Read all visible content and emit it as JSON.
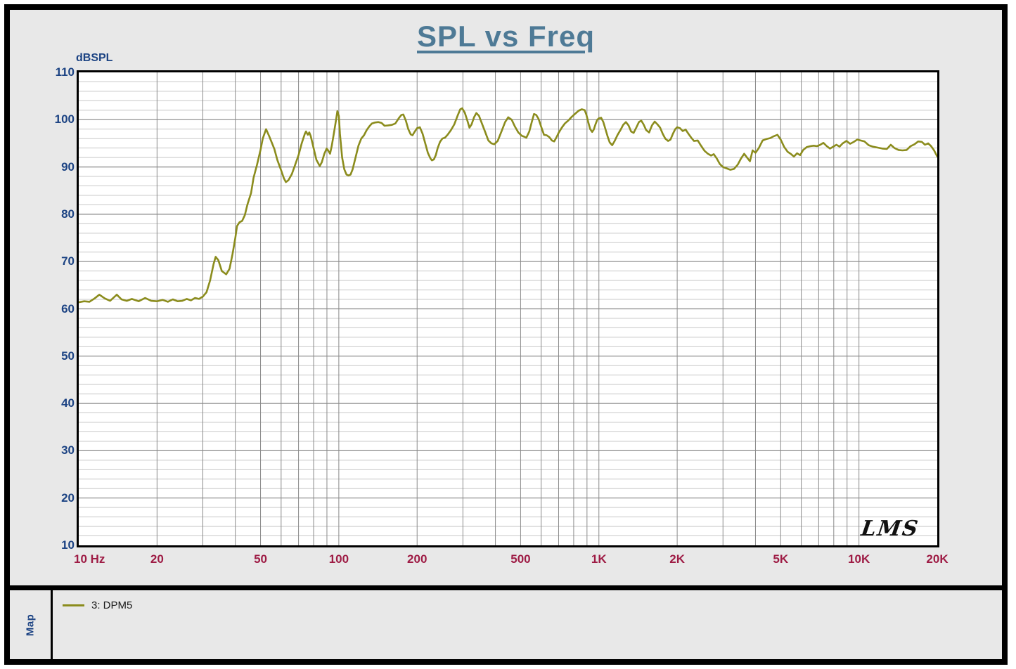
{
  "title": "SPL vs Freq",
  "signature": "LMS",
  "colors": {
    "title": "#4e7a96",
    "y_axis_labels": "#1c4383",
    "x_axis_labels": "#9e1c45",
    "curve": "#8b8c1d",
    "grid_major": "#8a8a8a",
    "grid_minor": "#c9c9c9",
    "panel_background": "#e8e8e8",
    "plot_background": "#ffffff",
    "frame": "#000000"
  },
  "y_axis": {
    "unit_label": "dBSPL",
    "ticks": [
      110,
      100,
      90,
      80,
      70,
      60,
      50,
      40,
      30,
      20,
      10
    ]
  },
  "x_axis": {
    "ticks": [
      {
        "freq": 10,
        "label": "10 Hz",
        "align": "left"
      },
      {
        "freq": 20,
        "label": "20",
        "align": "center"
      },
      {
        "freq": 50,
        "label": "50",
        "align": "center"
      },
      {
        "freq": 100,
        "label": "100",
        "align": "center"
      },
      {
        "freq": 200,
        "label": "200",
        "align": "center"
      },
      {
        "freq": 500,
        "label": "500",
        "align": "center"
      },
      {
        "freq": 1000,
        "label": "1K",
        "align": "center"
      },
      {
        "freq": 2000,
        "label": "2K",
        "align": "center"
      },
      {
        "freq": 5000,
        "label": "5K",
        "align": "center"
      },
      {
        "freq": 10000,
        "label": "10K",
        "align": "center"
      },
      {
        "freq": 20000,
        "label": "20K",
        "align": "center"
      }
    ]
  },
  "legend": {
    "panel_label": "Map",
    "items": [
      {
        "label": "3: DPM5",
        "color": "#8b8c1d"
      }
    ]
  },
  "chart_data": {
    "type": "line",
    "title": "SPL vs Freq",
    "xlabel": "Hz",
    "ylabel": "dBSPL",
    "x_scale": "log",
    "xlim": [
      10,
      20000
    ],
    "ylim": [
      10,
      110
    ],
    "y_major_step": 10,
    "y_minor_step": 2,
    "grid": true,
    "legend_position": "bottom-left",
    "series": [
      {
        "name": "3: DPM5",
        "color": "#8b8c1d",
        "points": [
          [
            10,
            61.4
          ],
          [
            10.5,
            61.6
          ],
          [
            11,
            61.5
          ],
          [
            11.5,
            62.2
          ],
          [
            12,
            63
          ],
          [
            12.6,
            62.2
          ],
          [
            13.2,
            61.7
          ],
          [
            14,
            63
          ],
          [
            14.6,
            62
          ],
          [
            15.3,
            61.7
          ],
          [
            16,
            62.1
          ],
          [
            17,
            61.6
          ],
          [
            18,
            62.3
          ],
          [
            19,
            61.7
          ],
          [
            20,
            61.6
          ],
          [
            21,
            61.9
          ],
          [
            22,
            61.5
          ],
          [
            23,
            62
          ],
          [
            24,
            61.6
          ],
          [
            25,
            61.7
          ],
          [
            26,
            62.1
          ],
          [
            27,
            61.8
          ],
          [
            28,
            62.3
          ],
          [
            29,
            62.1
          ],
          [
            30,
            62.6
          ],
          [
            31,
            63.5
          ],
          [
            32,
            66
          ],
          [
            33,
            69.5
          ],
          [
            33.6,
            71
          ],
          [
            34.4,
            70.3
          ],
          [
            35.5,
            68
          ],
          [
            36.9,
            67.3
          ],
          [
            38,
            68.5
          ],
          [
            39,
            71.5
          ],
          [
            40,
            75
          ],
          [
            40.6,
            77.5
          ],
          [
            41.5,
            78.3
          ],
          [
            42.5,
            78.6
          ],
          [
            43.5,
            79.8
          ],
          [
            44.5,
            82
          ],
          [
            46,
            84.5
          ],
          [
            47,
            87.7
          ],
          [
            48.5,
            90.5
          ],
          [
            50,
            93.6
          ],
          [
            51,
            96
          ],
          [
            52.5,
            98
          ],
          [
            54,
            96.5
          ],
          [
            56.5,
            93.8
          ],
          [
            58,
            91.5
          ],
          [
            60,
            89.3
          ],
          [
            61.5,
            87.6
          ],
          [
            62.6,
            86.8
          ],
          [
            64,
            87.2
          ],
          [
            66,
            88.5
          ],
          [
            68,
            90.5
          ],
          [
            70,
            92.5
          ],
          [
            72,
            95
          ],
          [
            74,
            97
          ],
          [
            74.8,
            97.5
          ],
          [
            76,
            96.8
          ],
          [
            77,
            97.3
          ],
          [
            78,
            96.5
          ],
          [
            80,
            94
          ],
          [
            82,
            91.5
          ],
          [
            84.5,
            90.2
          ],
          [
            86,
            91
          ],
          [
            88,
            92.8
          ],
          [
            89.8,
            93.9
          ],
          [
            91,
            93.5
          ],
          [
            92.5,
            92.8
          ],
          [
            94,
            94.5
          ],
          [
            96,
            97.5
          ],
          [
            97.5,
            99.8
          ],
          [
            98.7,
            101.8
          ],
          [
            100,
            100.8
          ],
          [
            101,
            97
          ],
          [
            103,
            92
          ],
          [
            105,
            89.5
          ],
          [
            107,
            88.4
          ],
          [
            109,
            88.2
          ],
          [
            111,
            88.4
          ],
          [
            113,
            89.5
          ],
          [
            116,
            92
          ],
          [
            119,
            94.5
          ],
          [
            122,
            96
          ],
          [
            125,
            96.7
          ],
          [
            128,
            97.8
          ],
          [
            131,
            98.6
          ],
          [
            134,
            99.2
          ],
          [
            138,
            99.4
          ],
          [
            142,
            99.5
          ],
          [
            146,
            99.3
          ],
          [
            150,
            98.7
          ],
          [
            155,
            98.8
          ],
          [
            160,
            98.9
          ],
          [
            165,
            99.2
          ],
          [
            170,
            100.3
          ],
          [
            174,
            101
          ],
          [
            177,
            101.1
          ],
          [
            181,
            99.8
          ],
          [
            185,
            98
          ],
          [
            189,
            96.9
          ],
          [
            192,
            96.7
          ],
          [
            196,
            97.5
          ],
          [
            200,
            98.2
          ],
          [
            205,
            98.4
          ],
          [
            210,
            97
          ],
          [
            215,
            95
          ],
          [
            220,
            93
          ],
          [
            225,
            91.8
          ],
          [
            228,
            91.4
          ],
          [
            232,
            91.6
          ],
          [
            236,
            92.5
          ],
          [
            240,
            94
          ],
          [
            245,
            95.3
          ],
          [
            250,
            96
          ],
          [
            256,
            96.2
          ],
          [
            262,
            96.8
          ],
          [
            270,
            97.8
          ],
          [
            278,
            99
          ],
          [
            286,
            100.8
          ],
          [
            293,
            102.2
          ],
          [
            298,
            102.4
          ],
          [
            305,
            101.5
          ],
          [
            312,
            99.8
          ],
          [
            318,
            98.3
          ],
          [
            324,
            99
          ],
          [
            331,
            100.5
          ],
          [
            338,
            101.4
          ],
          [
            346,
            100.8
          ],
          [
            356,
            99
          ],
          [
            366,
            97.3
          ],
          [
            376,
            95.6
          ],
          [
            386,
            95
          ],
          [
            396,
            94.8
          ],
          [
            408,
            95.5
          ],
          [
            422,
            97.5
          ],
          [
            436,
            99.5
          ],
          [
            448,
            100.5
          ],
          [
            462,
            100
          ],
          [
            476,
            98.5
          ],
          [
            490,
            97.3
          ],
          [
            505,
            96.6
          ],
          [
            516,
            96.4
          ],
          [
            526,
            96.2
          ],
          [
            540,
            97.5
          ],
          [
            552,
            99.5
          ],
          [
            563,
            101.2
          ],
          [
            574,
            101
          ],
          [
            586,
            100.2
          ],
          [
            600,
            98.5
          ],
          [
            615,
            96.8
          ],
          [
            630,
            96.7
          ],
          [
            645,
            96.3
          ],
          [
            660,
            95.6
          ],
          [
            673,
            95.4
          ],
          [
            686,
            96.2
          ],
          [
            700,
            97.2
          ],
          [
            720,
            98.3
          ],
          [
            740,
            99.2
          ],
          [
            762,
            99.8
          ],
          [
            786,
            100.6
          ],
          [
            812,
            101.3
          ],
          [
            836,
            101.9
          ],
          [
            860,
            102.2
          ],
          [
            882,
            102
          ],
          [
            896,
            101
          ],
          [
            910,
            99.5
          ],
          [
            926,
            98
          ],
          [
            942,
            97.4
          ],
          [
            956,
            97.9
          ],
          [
            970,
            99
          ],
          [
            986,
            100
          ],
          [
            1000,
            100.3
          ],
          [
            1020,
            100.4
          ],
          [
            1040,
            99.5
          ],
          [
            1060,
            98
          ],
          [
            1080,
            96.5
          ],
          [
            1100,
            95.2
          ],
          [
            1125,
            94.6
          ],
          [
            1150,
            95.5
          ],
          [
            1180,
            96.8
          ],
          [
            1210,
            97.8
          ],
          [
            1240,
            98.9
          ],
          [
            1270,
            99.5
          ],
          [
            1300,
            98.8
          ],
          [
            1330,
            97.5
          ],
          [
            1360,
            97.2
          ],
          [
            1395,
            98.4
          ],
          [
            1425,
            99.5
          ],
          [
            1455,
            99.8
          ],
          [
            1485,
            99
          ],
          [
            1520,
            97.8
          ],
          [
            1560,
            97.3
          ],
          [
            1600,
            98.8
          ],
          [
            1640,
            99.6
          ],
          [
            1680,
            99
          ],
          [
            1720,
            98.3
          ],
          [
            1760,
            97
          ],
          [
            1800,
            96
          ],
          [
            1845,
            95.5
          ],
          [
            1885,
            95.8
          ],
          [
            1925,
            97
          ],
          [
            1965,
            98
          ],
          [
            2000,
            98.4
          ],
          [
            2050,
            98.2
          ],
          [
            2100,
            97.6
          ],
          [
            2155,
            97.9
          ],
          [
            2210,
            97
          ],
          [
            2265,
            96.2
          ],
          [
            2320,
            95.5
          ],
          [
            2400,
            95.6
          ],
          [
            2470,
            94.5
          ],
          [
            2550,
            93.4
          ],
          [
            2625,
            92.8
          ],
          [
            2700,
            92.4
          ],
          [
            2765,
            92.7
          ],
          [
            2840,
            91.8
          ],
          [
            2920,
            90.6
          ],
          [
            3000,
            90
          ],
          [
            3100,
            89.7
          ],
          [
            3200,
            89.4
          ],
          [
            3310,
            89.6
          ],
          [
            3420,
            90.5
          ],
          [
            3520,
            91.8
          ],
          [
            3620,
            92.8
          ],
          [
            3710,
            92
          ],
          [
            3810,
            91.2
          ],
          [
            3900,
            93.5
          ],
          [
            4000,
            93
          ],
          [
            4120,
            94
          ],
          [
            4260,
            95.6
          ],
          [
            4400,
            95.9
          ],
          [
            4560,
            96.1
          ],
          [
            4700,
            96.5
          ],
          [
            4860,
            96.8
          ],
          [
            5000,
            95.8
          ],
          [
            5160,
            94.2
          ],
          [
            5320,
            93.2
          ],
          [
            5460,
            92.8
          ],
          [
            5620,
            92.2
          ],
          [
            5780,
            92.9
          ],
          [
            5940,
            92.5
          ],
          [
            6100,
            93.6
          ],
          [
            6300,
            94.2
          ],
          [
            6500,
            94.4
          ],
          [
            6700,
            94.5
          ],
          [
            6900,
            94.4
          ],
          [
            7100,
            94.7
          ],
          [
            7300,
            95.1
          ],
          [
            7520,
            94.4
          ],
          [
            7740,
            93.9
          ],
          [
            7960,
            94.3
          ],
          [
            8190,
            94.7
          ],
          [
            8420,
            94.3
          ],
          [
            8660,
            95
          ],
          [
            8950,
            95.5
          ],
          [
            9250,
            94.9
          ],
          [
            9550,
            95.3
          ],
          [
            9850,
            95.8
          ],
          [
            10150,
            95.6
          ],
          [
            10500,
            95.4
          ],
          [
            10900,
            94.6
          ],
          [
            11300,
            94.3
          ],
          [
            11800,
            94.1
          ],
          [
            12300,
            93.9
          ],
          [
            12800,
            93.8
          ],
          [
            13250,
            94.7
          ],
          [
            13700,
            94
          ],
          [
            14200,
            93.6
          ],
          [
            14700,
            93.5
          ],
          [
            15250,
            93.6
          ],
          [
            15800,
            94.4
          ],
          [
            16350,
            94.8
          ],
          [
            16900,
            95.4
          ],
          [
            17450,
            95.3
          ],
          [
            17950,
            94.7
          ],
          [
            18450,
            95
          ],
          [
            18950,
            94.4
          ],
          [
            19450,
            93.5
          ],
          [
            20000,
            92.2
          ]
        ]
      }
    ]
  }
}
